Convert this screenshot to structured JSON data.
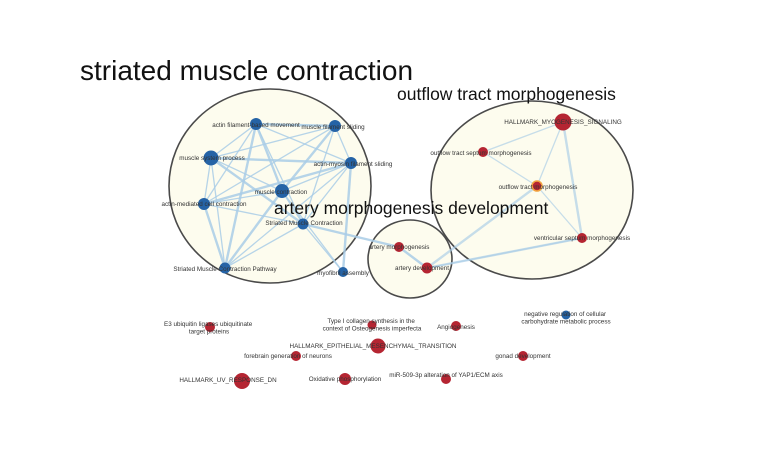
{
  "colors": {
    "background": "#ffffff",
    "cluster_fill": "#fdfcee",
    "cluster_stroke": "#4a4a4a",
    "edge": "#a9cde6",
    "blue_node": "#2563a6",
    "red_node": "#b52532",
    "orange_ring": "#f2a341"
  },
  "clusters": [
    {
      "id": "c1",
      "title": "striated muscle contraction"
    },
    {
      "id": "c2",
      "title": "outflow tract morphogenesis"
    },
    {
      "id": "c3",
      "title": "artery morphogenesis development"
    }
  ],
  "nodes": [
    {
      "id": "n1",
      "label": "actin filament-based movement",
      "color": "blue"
    },
    {
      "id": "n2",
      "label": "muscle filament sliding",
      "color": "blue"
    },
    {
      "id": "n3",
      "label": "muscle system process",
      "color": "blue"
    },
    {
      "id": "n4",
      "label": "actin-myosin filament sliding",
      "color": "blue"
    },
    {
      "id": "n5",
      "label": "muscle contraction",
      "color": "blue"
    },
    {
      "id": "n6",
      "label": "actin-mediated cell contraction",
      "color": "blue"
    },
    {
      "id": "n7",
      "label": "Striated Muscle Contraction",
      "color": "blue"
    },
    {
      "id": "n8",
      "label": "Striated Muscle Contraction Pathway",
      "color": "blue"
    },
    {
      "id": "n9",
      "label": "myofibril assembly",
      "color": "blue"
    },
    {
      "id": "n10",
      "label": "HALLMARK_MYOGENESIS_SIGNALING",
      "color": "red"
    },
    {
      "id": "n11",
      "label": "outflow tract septum morphogenesis",
      "color": "red"
    },
    {
      "id": "n12",
      "label": "outflow tract morphogenesis",
      "color": "red"
    },
    {
      "id": "n13",
      "label": "ventricular septum morphogenesis",
      "color": "red"
    },
    {
      "id": "n14",
      "label": "artery morphogenesis",
      "color": "red"
    },
    {
      "id": "n15",
      "label": "artery development",
      "color": "red"
    },
    {
      "id": "n16",
      "label": "E3 ubiquitin ligases ubiquitinate target proteins",
      "color": "red"
    },
    {
      "id": "n17",
      "label": "Type I collagen synthesis in the context of Osteogenesis imperfecta",
      "color": "red"
    },
    {
      "id": "n18",
      "label": "Angiogenesis",
      "color": "red"
    },
    {
      "id": "n19",
      "label": "negative regulation of cellular carbohydrate metabolic process",
      "color": "blue"
    },
    {
      "id": "n20",
      "label": "HALLMARK_EPITHELIAL_MESENCHYMAL_TRANSITION",
      "color": "red"
    },
    {
      "id": "n21",
      "label": "forebrain generation of neurons",
      "color": "red"
    },
    {
      "id": "n22",
      "label": "gonad development",
      "color": "red"
    },
    {
      "id": "n23",
      "label": "HALLMARK_UV_RESPONSE_DN",
      "color": "red"
    },
    {
      "id": "n24",
      "label": "Oxidative phosphorylation",
      "color": "red"
    },
    {
      "id": "n25",
      "label": "miR-509-3p alteration of YAP1/ECM axis",
      "color": "red"
    }
  ]
}
